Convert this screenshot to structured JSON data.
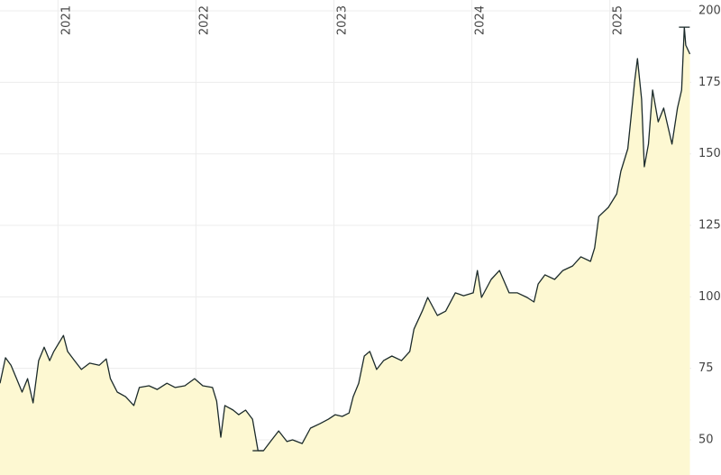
{
  "chart_data": {
    "type": "area",
    "x": [
      2020.58,
      2020.62,
      2020.66,
      2020.7,
      2020.74,
      2020.78,
      2020.82,
      2020.86,
      2020.9,
      2020.94,
      2020.97,
      2021.04,
      2021.07,
      2021.12,
      2021.17,
      2021.23,
      2021.3,
      2021.35,
      2021.38,
      2021.43,
      2021.49,
      2021.55,
      2021.59,
      2021.66,
      2021.72,
      2021.79,
      2021.85,
      2021.92,
      2021.99,
      2022.05,
      2022.12,
      2022.15,
      2022.18,
      2022.21,
      2022.27,
      2022.31,
      2022.36,
      2022.41,
      2022.45,
      2022.49,
      2022.54,
      2022.6,
      2022.66,
      2022.7,
      2022.77,
      2022.83,
      2022.9,
      2022.96,
      2023.01,
      2023.06,
      2023.11,
      2023.14,
      2023.18,
      2023.22,
      2023.26,
      2023.31,
      2023.36,
      2023.42,
      2023.49,
      2023.55,
      2023.58,
      2023.64,
      2023.68,
      2023.75,
      2023.81,
      2023.88,
      2023.94,
      2024.01,
      2024.04,
      2024.07,
      2024.14,
      2024.2,
      2024.27,
      2024.33,
      2024.4,
      2024.45,
      2024.48,
      2024.53,
      2024.6,
      2024.66,
      2024.73,
      2024.79,
      2024.86,
      2024.89,
      2024.92,
      2024.99,
      2025.05,
      2025.08,
      2025.13,
      2025.16,
      2025.18,
      2025.2,
      2025.23,
      2025.25,
      2025.28,
      2025.31,
      2025.35,
      2025.39,
      2025.42,
      2025.45,
      2025.49,
      2025.52,
      2025.54,
      2025.55,
      2025.58
    ],
    "series": [
      {
        "color": "#1c2b2b",
        "fill": "#fdf8d2",
        "values": [
          69.8,
          78.7,
          76.1,
          71.4,
          66.7,
          71.4,
          62.9,
          77.7,
          82.4,
          77.7,
          80.9,
          86.5,
          80.9,
          77.7,
          74.6,
          76.8,
          76.1,
          78.3,
          71.4,
          66.7,
          65.1,
          62.0,
          68.3,
          68.9,
          67.6,
          69.8,
          68.3,
          68.9,
          71.4,
          68.9,
          68.3,
          63.5,
          50.9,
          62.0,
          60.4,
          58.8,
          60.4,
          57.2,
          46.2,
          46.2,
          49.4,
          53.1,
          49.4,
          50.0,
          48.7,
          54.1,
          55.7,
          57.2,
          58.8,
          58.2,
          59.4,
          65.1,
          69.8,
          79.3,
          80.9,
          74.6,
          77.7,
          79.3,
          77.7,
          80.9,
          88.7,
          95.0,
          99.8,
          93.5,
          95.0,
          101.4,
          100.4,
          101.4,
          109.2,
          99.8,
          106.1,
          109.2,
          101.4,
          101.4,
          99.8,
          98.2,
          104.5,
          107.7,
          106.1,
          109.2,
          110.8,
          114.0,
          112.4,
          117.1,
          128.1,
          131.3,
          136.0,
          143.9,
          151.8,
          166.0,
          175.4,
          183.3,
          169.1,
          145.5,
          153.4,
          172.3,
          161.2,
          166.0,
          159.7,
          153.4,
          166.0,
          172.3,
          194.3,
          188.0,
          184.9
        ]
      }
    ],
    "xlim": [
      2020.58,
      2025.59
    ],
    "xticks": [
      2021,
      2022,
      2023,
      2024,
      2025
    ],
    "ylim": [
      37.7,
      203.8
    ],
    "yticks": [
      50,
      75,
      100,
      125,
      150,
      175,
      200
    ],
    "grid": true,
    "grid_color": "#ececec",
    "axis_side": "right"
  }
}
